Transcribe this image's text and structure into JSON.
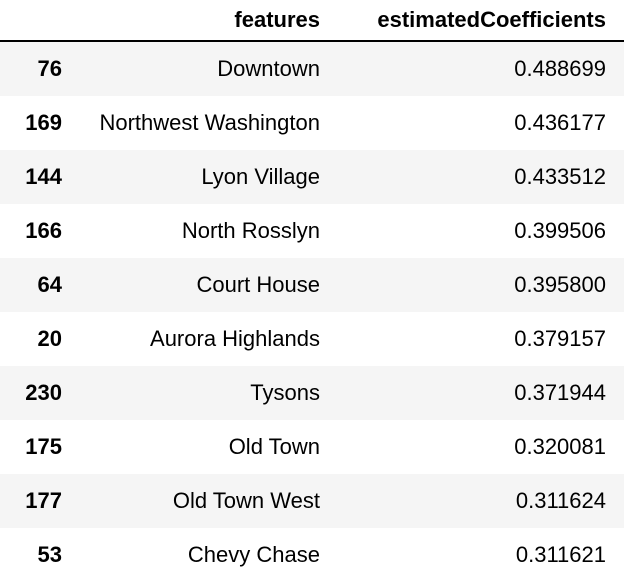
{
  "table": {
    "columns": [
      "",
      "features",
      "estimatedCoefficients"
    ],
    "rows": [
      {
        "index": "76",
        "features": "Downtown",
        "estimatedCoefficients": "0.488699"
      },
      {
        "index": "169",
        "features": "Northwest Washington",
        "estimatedCoefficients": "0.436177"
      },
      {
        "index": "144",
        "features": "Lyon Village",
        "estimatedCoefficients": "0.433512"
      },
      {
        "index": "166",
        "features": "North Rosslyn",
        "estimatedCoefficients": "0.399506"
      },
      {
        "index": "64",
        "features": "Court House",
        "estimatedCoefficients": "0.395800"
      },
      {
        "index": "20",
        "features": "Aurora Highlands",
        "estimatedCoefficients": "0.379157"
      },
      {
        "index": "230",
        "features": "Tysons",
        "estimatedCoefficients": "0.371944"
      },
      {
        "index": "175",
        "features": "Old Town",
        "estimatedCoefficients": "0.320081"
      },
      {
        "index": "177",
        "features": "Old Town West",
        "estimatedCoefficients": "0.311624"
      },
      {
        "index": "53",
        "features": "Chevy Chase",
        "estimatedCoefficients": "0.311621"
      }
    ]
  },
  "colors": {
    "stripe": "#f5f5f5",
    "text": "#000000",
    "header_rule": "#000000"
  }
}
